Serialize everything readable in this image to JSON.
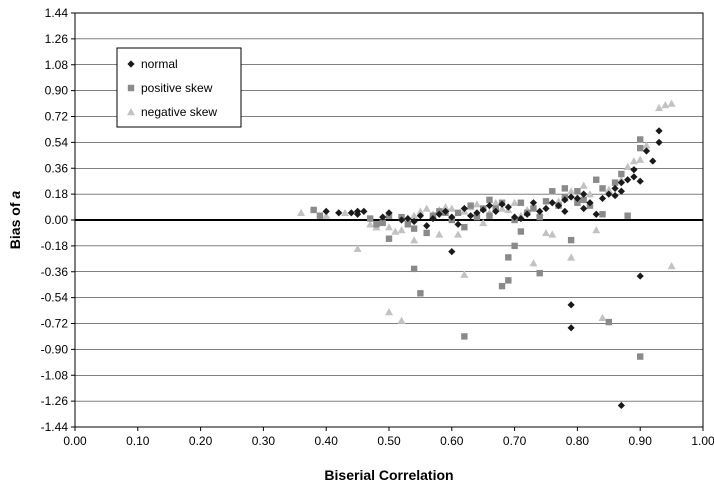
{
  "chart_data": {
    "type": "scatter",
    "xlabel": "Biserial Correlation",
    "ylabel_main": "Bias of ",
    "ylabel_var": "a",
    "xlim": [
      0,
      1
    ],
    "ylim": [
      -1.44,
      1.44
    ],
    "x_ticks": [
      "0.00",
      "0.10",
      "0.20",
      "0.30",
      "0.40",
      "0.50",
      "0.60",
      "0.70",
      "0.80",
      "0.90",
      "1.00"
    ],
    "y_ticks": [
      "1.44",
      "1.26",
      "1.08",
      "0.90",
      "0.72",
      "0.54",
      "0.36",
      "0.18",
      "0.00",
      "-0.18",
      "-0.36",
      "-0.54",
      "-0.72",
      "-0.90",
      "-1.08",
      "-1.26",
      "-1.44"
    ],
    "grid": "horizontal",
    "legend_position": "top-left",
    "series": [
      {
        "name": "normal",
        "marker": "diamond",
        "color": "#1a1a1a",
        "points": [
          [
            0.4,
            0.06
          ],
          [
            0.42,
            0.05
          ],
          [
            0.44,
            0.05
          ],
          [
            0.45,
            0.06
          ],
          [
            0.45,
            0.04
          ],
          [
            0.46,
            0.06
          ],
          [
            0.49,
            0.02
          ],
          [
            0.5,
            0.05
          ],
          [
            0.52,
            0.0
          ],
          [
            0.53,
            0.01
          ],
          [
            0.54,
            -0.01
          ],
          [
            0.55,
            0.03
          ],
          [
            0.56,
            -0.04
          ],
          [
            0.57,
            0.01
          ],
          [
            0.58,
            0.04
          ],
          [
            0.59,
            0.06
          ],
          [
            0.6,
            0.02
          ],
          [
            0.6,
            -0.22
          ],
          [
            0.61,
            -0.03
          ],
          [
            0.62,
            0.08
          ],
          [
            0.63,
            0.03
          ],
          [
            0.64,
            0.05
          ],
          [
            0.65,
            0.07
          ],
          [
            0.66,
            0.1
          ],
          [
            0.67,
            0.06
          ],
          [
            0.68,
            0.11
          ],
          [
            0.69,
            0.09
          ],
          [
            0.7,
            0.02
          ],
          [
            0.71,
            0.01
          ],
          [
            0.72,
            0.04
          ],
          [
            0.73,
            0.12
          ],
          [
            0.74,
            0.06
          ],
          [
            0.75,
            0.08
          ],
          [
            0.76,
            0.12
          ],
          [
            0.77,
            0.1
          ],
          [
            0.78,
            0.14
          ],
          [
            0.78,
            0.06
          ],
          [
            0.79,
            0.16
          ],
          [
            0.8,
            0.15
          ],
          [
            0.81,
            0.18
          ],
          [
            0.81,
            0.08
          ],
          [
            0.82,
            0.12
          ],
          [
            0.83,
            0.04
          ],
          [
            0.84,
            0.15
          ],
          [
            0.85,
            0.18
          ],
          [
            0.86,
            0.22
          ],
          [
            0.86,
            0.17
          ],
          [
            0.87,
            0.26
          ],
          [
            0.87,
            0.2
          ],
          [
            0.88,
            0.28
          ],
          [
            0.89,
            0.3
          ],
          [
            0.89,
            0.35
          ],
          [
            0.9,
            0.27
          ],
          [
            0.91,
            0.48
          ],
          [
            0.92,
            0.41
          ],
          [
            0.93,
            0.54
          ],
          [
            0.93,
            0.62
          ],
          [
            0.9,
            -0.39
          ],
          [
            0.79,
            -0.59
          ],
          [
            0.79,
            -0.75
          ],
          [
            0.87,
            -1.29
          ]
        ]
      },
      {
        "name": "positive skew",
        "marker": "square",
        "color": "#8a8a8a",
        "points": [
          [
            0.38,
            0.07
          ],
          [
            0.39,
            0.03
          ],
          [
            0.47,
            0.01
          ],
          [
            0.48,
            -0.03
          ],
          [
            0.49,
            -0.02
          ],
          [
            0.5,
            -0.13
          ],
          [
            0.5,
            0.03
          ],
          [
            0.52,
            0.02
          ],
          [
            0.53,
            -0.03
          ],
          [
            0.54,
            -0.06
          ],
          [
            0.54,
            -0.34
          ],
          [
            0.55,
            -0.51
          ],
          [
            0.56,
            -0.09
          ],
          [
            0.57,
            0.03
          ],
          [
            0.58,
            0.06
          ],
          [
            0.59,
            0.05
          ],
          [
            0.6,
            0.0
          ],
          [
            0.61,
            0.05
          ],
          [
            0.62,
            -0.05
          ],
          [
            0.62,
            -0.81
          ],
          [
            0.63,
            0.1
          ],
          [
            0.64,
            0.02
          ],
          [
            0.65,
            0.08
          ],
          [
            0.66,
            0.14
          ],
          [
            0.66,
            0.03
          ],
          [
            0.67,
            0.08
          ],
          [
            0.68,
            -0.46
          ],
          [
            0.68,
            0.12
          ],
          [
            0.69,
            -0.26
          ],
          [
            0.69,
            -0.42
          ],
          [
            0.7,
            0.0
          ],
          [
            0.7,
            -0.18
          ],
          [
            0.71,
            0.12
          ],
          [
            0.71,
            -0.08
          ],
          [
            0.72,
            0.05
          ],
          [
            0.73,
            0.08
          ],
          [
            0.74,
            -0.37
          ],
          [
            0.74,
            0.02
          ],
          [
            0.75,
            0.13
          ],
          [
            0.76,
            0.2
          ],
          [
            0.77,
            0.1
          ],
          [
            0.78,
            0.16
          ],
          [
            0.78,
            0.22
          ],
          [
            0.79,
            -0.14
          ],
          [
            0.8,
            0.2
          ],
          [
            0.8,
            0.12
          ],
          [
            0.81,
            0.14
          ],
          [
            0.82,
            0.1
          ],
          [
            0.83,
            0.28
          ],
          [
            0.84,
            0.22
          ],
          [
            0.84,
            0.04
          ],
          [
            0.85,
            -0.71
          ],
          [
            0.86,
            0.26
          ],
          [
            0.87,
            0.32
          ],
          [
            0.88,
            0.03
          ],
          [
            0.9,
            0.5
          ],
          [
            0.9,
            0.56
          ],
          [
            0.9,
            -0.95
          ]
        ]
      },
      {
        "name": "negative skew",
        "marker": "triangle",
        "color": "#c2c2c2",
        "points": [
          [
            0.36,
            0.05
          ],
          [
            0.4,
            0.03
          ],
          [
            0.43,
            0.05
          ],
          [
            0.45,
            -0.2
          ],
          [
            0.47,
            -0.03
          ],
          [
            0.48,
            -0.05
          ],
          [
            0.5,
            -0.64
          ],
          [
            0.5,
            -0.05
          ],
          [
            0.51,
            -0.08
          ],
          [
            0.52,
            -0.7
          ],
          [
            0.52,
            -0.07
          ],
          [
            0.53,
            0.01
          ],
          [
            0.54,
            0.03
          ],
          [
            0.54,
            -0.14
          ],
          [
            0.55,
            0.06
          ],
          [
            0.56,
            0.08
          ],
          [
            0.57,
            0.04
          ],
          [
            0.58,
            0.07
          ],
          [
            0.58,
            -0.1
          ],
          [
            0.59,
            0.09
          ],
          [
            0.6,
            0.08
          ],
          [
            0.61,
            -0.1
          ],
          [
            0.62,
            0.06
          ],
          [
            0.62,
            -0.38
          ],
          [
            0.63,
            0.09
          ],
          [
            0.64,
            0.11
          ],
          [
            0.65,
            -0.02
          ],
          [
            0.66,
            0.05
          ],
          [
            0.67,
            0.12
          ],
          [
            0.68,
            0.08
          ],
          [
            0.69,
            0.07
          ],
          [
            0.7,
            0.12
          ],
          [
            0.71,
            0.03
          ],
          [
            0.72,
            0.07
          ],
          [
            0.73,
            -0.3
          ],
          [
            0.74,
            0.05
          ],
          [
            0.75,
            -0.09
          ],
          [
            0.76,
            -0.1
          ],
          [
            0.77,
            0.13
          ],
          [
            0.78,
            0.15
          ],
          [
            0.79,
            0.2
          ],
          [
            0.79,
            -0.26
          ],
          [
            0.8,
            0.16
          ],
          [
            0.81,
            0.24
          ],
          [
            0.82,
            0.18
          ],
          [
            0.83,
            -0.07
          ],
          [
            0.84,
            -0.68
          ],
          [
            0.85,
            0.21
          ],
          [
            0.87,
            0.28
          ],
          [
            0.88,
            0.37
          ],
          [
            0.89,
            0.41
          ],
          [
            0.9,
            0.42
          ],
          [
            0.91,
            0.52
          ],
          [
            0.93,
            0.78
          ],
          [
            0.94,
            0.8
          ],
          [
            0.95,
            0.81
          ],
          [
            0.95,
            -0.32
          ]
        ]
      }
    ]
  }
}
